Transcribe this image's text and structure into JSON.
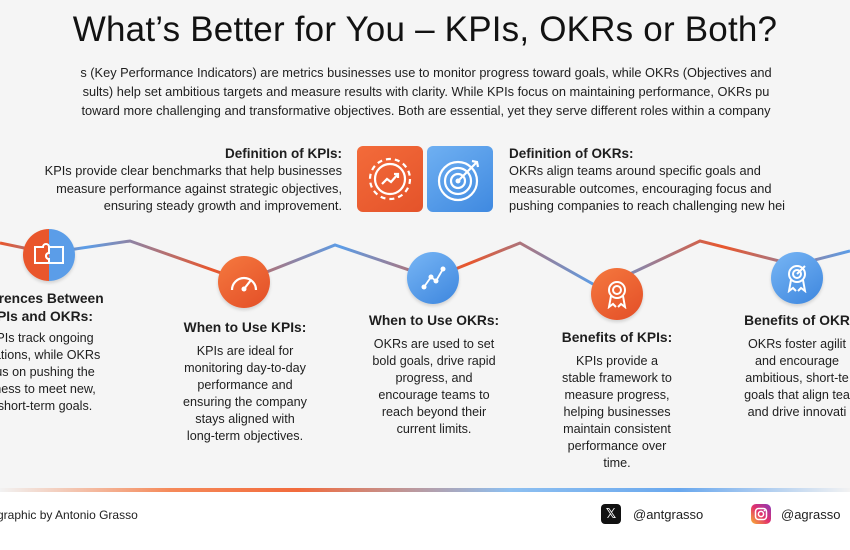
{
  "title": "What’s Better for You – KPIs, OKRs or Both?",
  "intro": {
    "line1": "s (Key Performance Indicators) are metrics businesses use to monitor progress toward goals, while OKRs (Objectives and",
    "line2": "sults) help set ambitious targets and measure results with clarity. While KPIs focus on maintaining performance, OKRs pu",
    "line3": "toward more challenging and transformative objectives. Both are essential, yet they serve different roles within a company"
  },
  "definition_kpis": {
    "heading": "Definition of KPIs:",
    "lines": [
      "KPIs provide clear benchmarks that help businesses",
      "measure performance against strategic objectives,",
      "ensuring steady growth and improvement."
    ]
  },
  "definition_okrs": {
    "heading": "Definition of OKRs:",
    "lines": [
      "OKRs align teams around specific goals and",
      "measurable outcomes, encouraging focus and",
      "pushing companies to reach challenging new hei"
    ]
  },
  "cards": {
    "differences": {
      "heading1": "ferences Between",
      "heading2": "PIs and OKRs:",
      "lines": [
        "PIs track ongoing",
        "rations, while OKRs",
        "us on pushing the",
        "ness to meet new,",
        "short-term goals."
      ]
    },
    "when_kpis": {
      "heading": "When to Use KPIs:",
      "lines": [
        "KPIs are ideal for",
        "monitoring day-to-day",
        "performance and",
        "ensuring the company",
        "stays aligned with",
        "long-term objectives."
      ]
    },
    "when_okrs": {
      "heading": "When to Use OKRs:",
      "lines": [
        "OKRs are used to set",
        "bold goals, drive rapid",
        "progress, and",
        "encourage teams to",
        "reach beyond their",
        "current limits."
      ]
    },
    "benefits_kpis": {
      "heading": "Benefits of KPIs:",
      "lines": [
        "KPIs provide a",
        "stable framework to",
        "measure progress,",
        "helping businesses",
        "maintain consistent",
        "performance over",
        "time."
      ]
    },
    "benefits_okrs": {
      "heading": "Benefits of OKR",
      "lines": [
        "OKRs foster agilit",
        "and encourage",
        "ambitious, short-te",
        "goals that align tea",
        "and drive innovati"
      ]
    }
  },
  "footer": {
    "credit": "graphic by Antonio Grasso",
    "x_handle": "@antgrasso",
    "ig_handle": "@agrasso"
  },
  "colors": {
    "orange": "#e9562c",
    "blue": "#5b9de8"
  },
  "icons": {
    "tile_kpi": "gear-chart-icon",
    "tile_okr": "target-arrow-icon",
    "differences": "puzzle-icon",
    "when_kpis": "gauge-icon",
    "when_okrs": "network-path-icon",
    "benefits_kpis": "award-badge-icon",
    "benefits_okrs": "target-medal-icon"
  }
}
